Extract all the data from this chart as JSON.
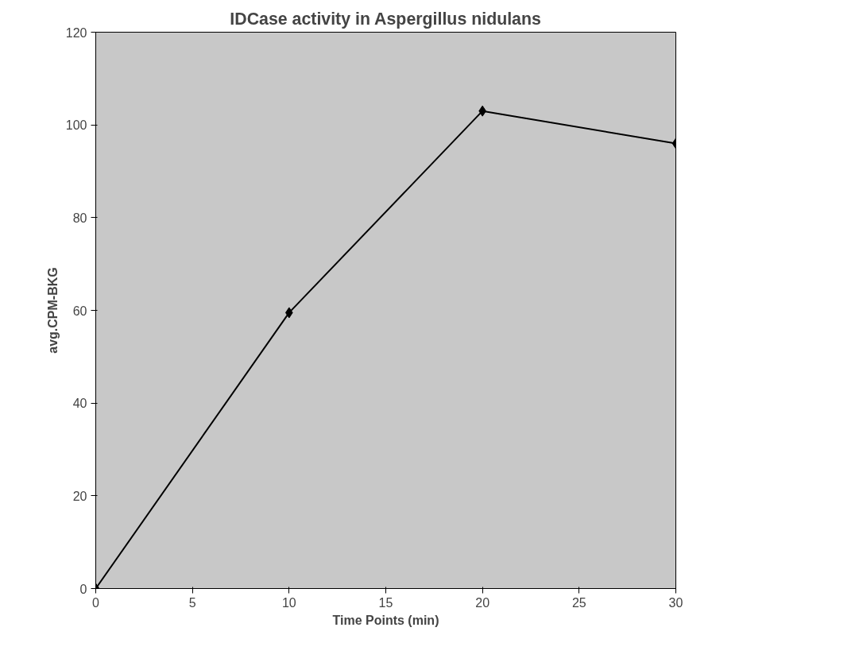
{
  "chart_data": {
    "type": "line",
    "title": "IDCase activity in Aspergillus nidulans",
    "xlabel": "Time Points (min)",
    "ylabel": "avg.CPM-BKG",
    "x": [
      0,
      10,
      20,
      30
    ],
    "series": [
      {
        "color": "#000000",
        "values": [
          0,
          59.5,
          103,
          96
        ]
      }
    ],
    "xlim": [
      0,
      30
    ],
    "xticks": [
      0,
      5,
      10,
      15,
      20,
      25,
      30
    ],
    "ylim": [
      0,
      120
    ],
    "yticks": [
      0,
      20,
      40,
      60,
      80,
      100,
      120
    ],
    "grid": false,
    "marker": "diamond",
    "line_style": "solid"
  }
}
